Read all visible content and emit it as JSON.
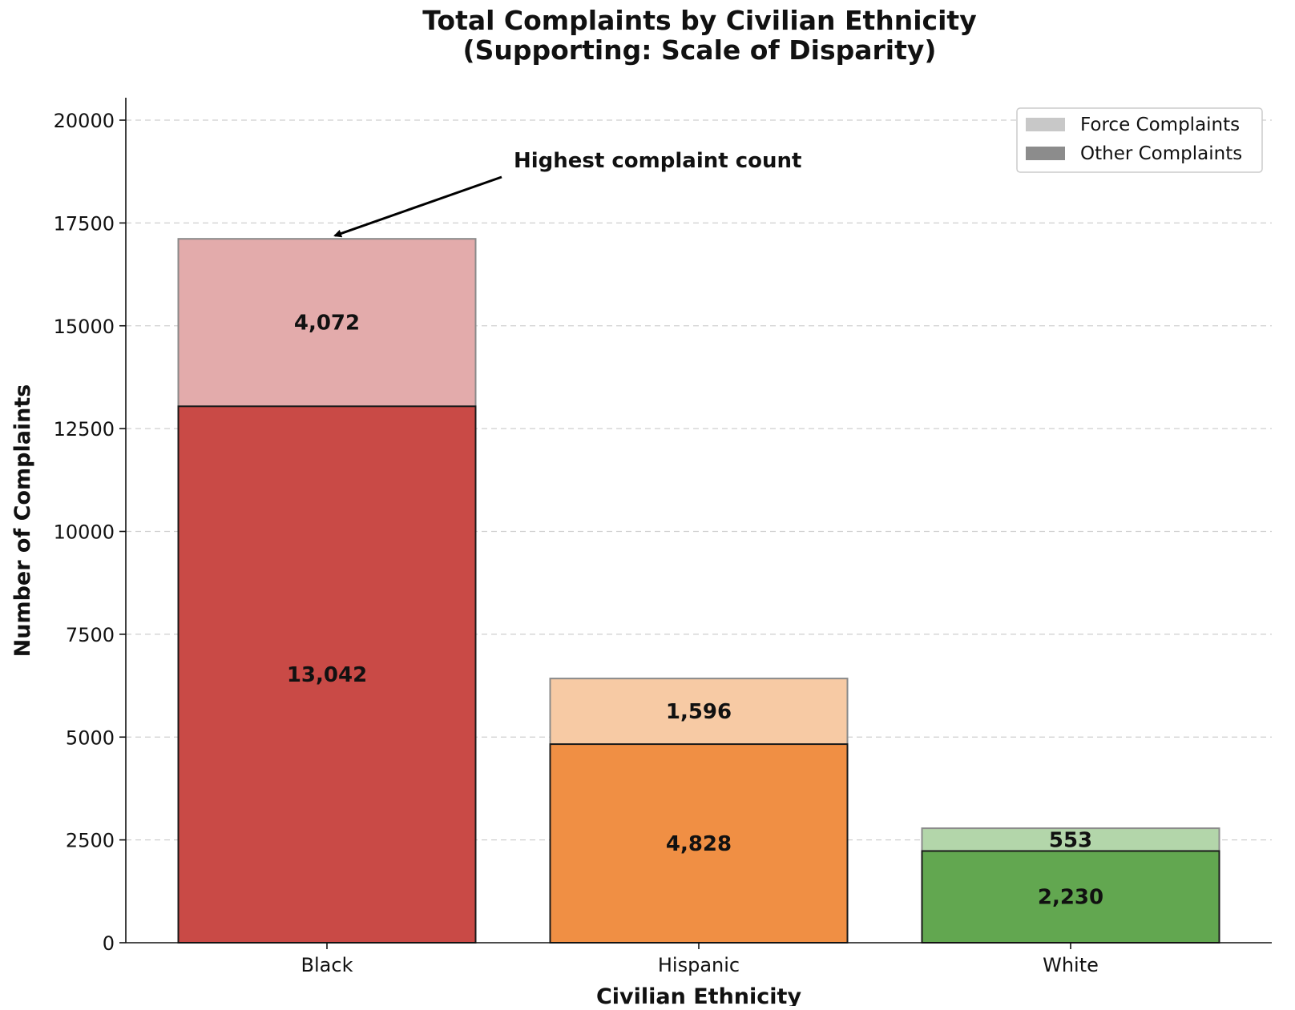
{
  "chart_data": {
    "type": "bar",
    "stacked": true,
    "title": "Total Complaints by Civilian Ethnicity",
    "subtitle": "(Supporting: Scale of Disparity)",
    "xlabel": "Civilian Ethnicity",
    "ylabel": "Number of Complaints",
    "categories": [
      "Black",
      "Hispanic",
      "White"
    ],
    "series": [
      {
        "name": "Other Complaints",
        "values": [
          13042,
          4828,
          2230
        ],
        "labels": [
          "13,042",
          "4,828",
          "2,230"
        ]
      },
      {
        "name": "Force Complaints",
        "values": [
          4072,
          1596,
          553
        ],
        "labels": [
          "4,072",
          "1,596",
          "553"
        ]
      }
    ],
    "bar_colors": {
      "Black": {
        "other": "#c94a46",
        "force": "#e3abab"
      },
      "Hispanic": {
        "other": "#f08f44",
        "force": "#f7caa4"
      },
      "White": {
        "other": "#62a750",
        "force": "#b3d6aa"
      }
    },
    "ylim": [
      0,
      20500
    ],
    "yticks": [
      0,
      2500,
      5000,
      7500,
      10000,
      12500,
      15000,
      17500,
      20000
    ],
    "grid": "y-dashed",
    "legend": {
      "position": "top-right",
      "entries": [
        {
          "label": "Force Complaints",
          "color": "#c8c8c8"
        },
        {
          "label": "Other Complaints",
          "color": "#8c8c8c"
        }
      ]
    },
    "annotation": {
      "text": "Highest complaint count",
      "target_category": "Black",
      "target_value": 17114
    }
  }
}
